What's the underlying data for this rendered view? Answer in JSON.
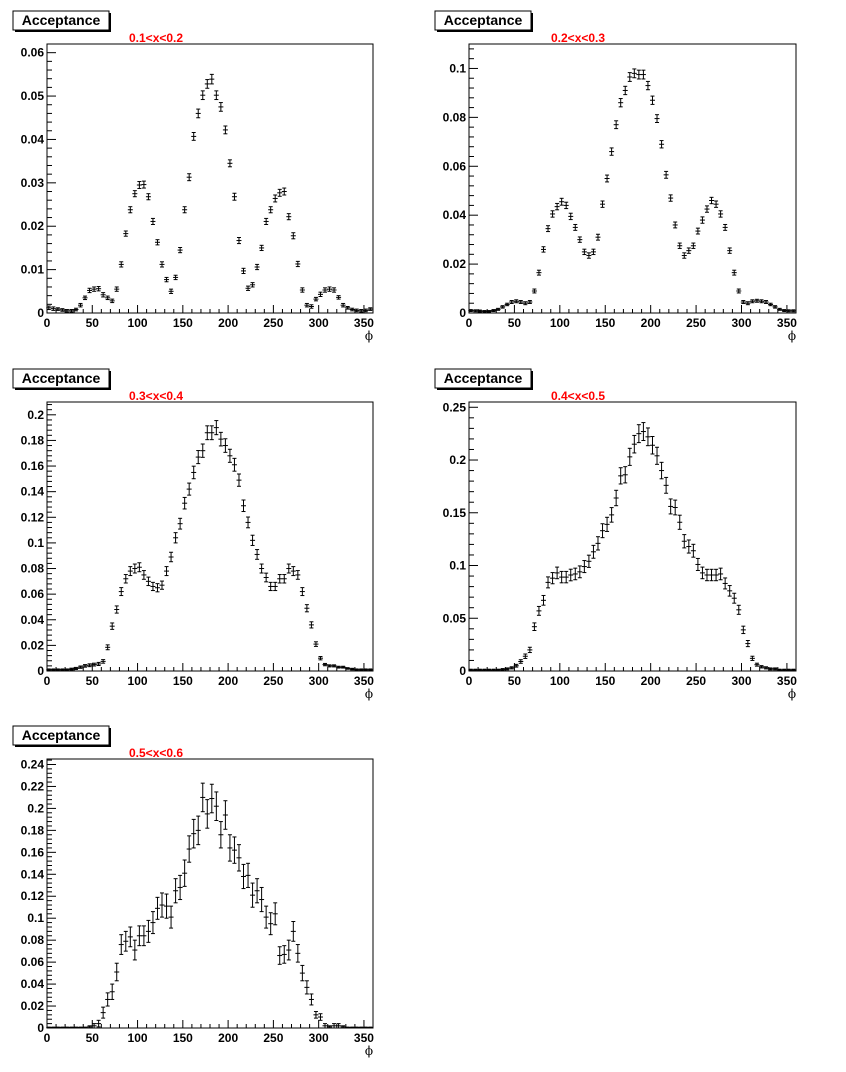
{
  "chart_data": [
    {
      "type": "scatter",
      "title": "Acceptance",
      "subtitle": "0.1<x<0.2",
      "xlabel": "ϕ",
      "ylabel": "",
      "xlim": [
        0,
        360
      ],
      "ylim": [
        0,
        0.062
      ],
      "xticks": [
        0,
        50,
        100,
        150,
        200,
        250,
        300,
        350
      ],
      "yticks": [
        0,
        0.01,
        0.02,
        0.03,
        0.04,
        0.05,
        0.06
      ],
      "ytick_labels": [
        "0",
        "0.01",
        "0.02",
        "0.03",
        "0.04",
        "0.05",
        "0.06"
      ],
      "grid": false,
      "legend": "none",
      "x": [
        2,
        7,
        12,
        17,
        22,
        27,
        32,
        37,
        42,
        47,
        52,
        57,
        62,
        67,
        72,
        77,
        82,
        87,
        92,
        97,
        102,
        107,
        112,
        117,
        122,
        127,
        132,
        137,
        142,
        147,
        152,
        157,
        162,
        167,
        172,
        177,
        182,
        187,
        192,
        197,
        202,
        207,
        212,
        217,
        222,
        227,
        232,
        237,
        242,
        247,
        252,
        257,
        262,
        267,
        272,
        277,
        282,
        287,
        292,
        297,
        302,
        307,
        312,
        317,
        322,
        327,
        332,
        337,
        342,
        347,
        352,
        357
      ],
      "y": [
        0.0012,
        0.001,
        0.0009,
        0.0007,
        0.0005,
        0.0005,
        0.0008,
        0.0018,
        0.0035,
        0.0052,
        0.0055,
        0.0056,
        0.0042,
        0.0035,
        0.0028,
        0.0055,
        0.0112,
        0.0183,
        0.0238,
        0.0275,
        0.0295,
        0.0296,
        0.0268,
        0.0211,
        0.0163,
        0.0112,
        0.0077,
        0.005,
        0.0082,
        0.0145,
        0.0238,
        0.0313,
        0.0407,
        0.046,
        0.0502,
        0.0528,
        0.0539,
        0.0502,
        0.0475,
        0.0422,
        0.0345,
        0.0268,
        0.0167,
        0.0097,
        0.0057,
        0.0065,
        0.0106,
        0.015,
        0.0211,
        0.0238,
        0.0264,
        0.0277,
        0.028,
        0.0222,
        0.0178,
        0.0113,
        0.0053,
        0.0018,
        0.0015,
        0.0032,
        0.0043,
        0.0053,
        0.0055,
        0.0053,
        0.0036,
        0.0018,
        0.0012,
        0.0008,
        0.0006,
        0.0005,
        0.0006,
        0.0009
      ],
      "yerr": [
        0.0004,
        0.0004,
        0.0003,
        0.0003,
        0.0003,
        0.0003,
        0.0003,
        0.0004,
        0.0004,
        0.0005,
        0.0005,
        0.0005,
        0.0005,
        0.0004,
        0.0004,
        0.0005,
        0.0006,
        0.0006,
        0.0007,
        0.0007,
        0.0008,
        0.0008,
        0.0007,
        0.0007,
        0.0006,
        0.0006,
        0.0005,
        0.0005,
        0.0005,
        0.0006,
        0.0007,
        0.0008,
        0.0009,
        0.001,
        0.001,
        0.001,
        0.0011,
        0.001,
        0.001,
        0.0009,
        0.0008,
        0.0008,
        0.0007,
        0.0006,
        0.0005,
        0.0005,
        0.0006,
        0.0006,
        0.0007,
        0.0007,
        0.0008,
        0.0008,
        0.0008,
        0.0007,
        0.0007,
        0.0006,
        0.0005,
        0.0004,
        0.0004,
        0.0004,
        0.0005,
        0.0005,
        0.0005,
        0.0005,
        0.0004,
        0.0004,
        0.0003,
        0.0003,
        0.0003,
        0.0003,
        0.0003,
        0.0003
      ]
    },
    {
      "type": "scatter",
      "title": "Acceptance",
      "subtitle": "0.2<x<0.3",
      "xlabel": "ϕ",
      "ylabel": "",
      "xlim": [
        0,
        360
      ],
      "ylim": [
        0,
        0.11
      ],
      "xticks": [
        0,
        50,
        100,
        150,
        200,
        250,
        300,
        350
      ],
      "yticks": [
        0,
        0.02,
        0.04,
        0.06,
        0.08,
        0.1
      ],
      "ytick_labels": [
        "0",
        "0.02",
        "0.04",
        "0.06",
        "0.08",
        "0.1"
      ],
      "grid": false,
      "legend": "none",
      "x": [
        2,
        7,
        12,
        17,
        22,
        27,
        32,
        37,
        42,
        47,
        52,
        57,
        62,
        67,
        72,
        77,
        82,
        87,
        92,
        97,
        102,
        107,
        112,
        117,
        122,
        127,
        132,
        137,
        142,
        147,
        152,
        157,
        162,
        167,
        172,
        177,
        182,
        187,
        192,
        197,
        202,
        207,
        212,
        217,
        222,
        227,
        232,
        237,
        242,
        247,
        252,
        257,
        262,
        267,
        272,
        277,
        282,
        287,
        292,
        297,
        302,
        307,
        312,
        317,
        322,
        327,
        332,
        337,
        342,
        347,
        352,
        357
      ],
      "y": [
        0.001,
        0.0009,
        0.0008,
        0.0007,
        0.0007,
        0.001,
        0.0015,
        0.0025,
        0.0035,
        0.0045,
        0.0048,
        0.0045,
        0.004,
        0.0045,
        0.009,
        0.0165,
        0.026,
        0.0345,
        0.0405,
        0.0435,
        0.0455,
        0.044,
        0.0395,
        0.035,
        0.03,
        0.025,
        0.0235,
        0.025,
        0.031,
        0.0445,
        0.055,
        0.066,
        0.077,
        0.086,
        0.091,
        0.0965,
        0.098,
        0.0975,
        0.0975,
        0.093,
        0.087,
        0.0795,
        0.069,
        0.0565,
        0.047,
        0.036,
        0.0275,
        0.0235,
        0.0255,
        0.0275,
        0.0335,
        0.038,
        0.0425,
        0.046,
        0.0445,
        0.0405,
        0.035,
        0.0255,
        0.0165,
        0.009,
        0.0045,
        0.004,
        0.0048,
        0.005,
        0.0048,
        0.0045,
        0.0035,
        0.0025,
        0.0015,
        0.001,
        0.0009,
        0.0009
      ],
      "yerr": [
        0.0004,
        0.0004,
        0.0004,
        0.0003,
        0.0003,
        0.0004,
        0.0004,
        0.0005,
        0.0005,
        0.0006,
        0.0006,
        0.0006,
        0.0006,
        0.0006,
        0.0008,
        0.001,
        0.0011,
        0.0012,
        0.0013,
        0.0013,
        0.0014,
        0.0013,
        0.0013,
        0.0012,
        0.0011,
        0.0011,
        0.0011,
        0.0011,
        0.0012,
        0.0013,
        0.0014,
        0.0015,
        0.0016,
        0.0017,
        0.0017,
        0.0018,
        0.0018,
        0.0018,
        0.0018,
        0.0017,
        0.0017,
        0.0016,
        0.0015,
        0.0014,
        0.0013,
        0.0012,
        0.0011,
        0.0011,
        0.0011,
        0.0011,
        0.0012,
        0.0013,
        0.0013,
        0.0013,
        0.0013,
        0.0013,
        0.0012,
        0.0011,
        0.001,
        0.0008,
        0.0006,
        0.0006,
        0.0006,
        0.0006,
        0.0006,
        0.0006,
        0.0005,
        0.0005,
        0.0004,
        0.0004,
        0.0004,
        0.0004
      ]
    },
    {
      "type": "scatter",
      "title": "Acceptance",
      "subtitle": "0.3<x<0.4",
      "xlabel": "ϕ",
      "ylabel": "",
      "xlim": [
        0,
        360
      ],
      "ylim": [
        0,
        0.21
      ],
      "xticks": [
        0,
        50,
        100,
        150,
        200,
        250,
        300,
        350
      ],
      "yticks": [
        0,
        0.02,
        0.04,
        0.06,
        0.08,
        0.1,
        0.12,
        0.14,
        0.16,
        0.18,
        0.2
      ],
      "ytick_labels": [
        "0",
        "0.02",
        "0.04",
        "0.06",
        "0.08",
        "0.1",
        "0.12",
        "0.14",
        "0.16",
        "0.18",
        "0.2"
      ],
      "grid": false,
      "legend": "none",
      "x": [
        2,
        7,
        12,
        17,
        22,
        27,
        32,
        37,
        42,
        47,
        52,
        57,
        62,
        67,
        72,
        77,
        82,
        87,
        92,
        97,
        102,
        107,
        112,
        117,
        122,
        127,
        132,
        137,
        142,
        147,
        152,
        157,
        162,
        167,
        172,
        177,
        182,
        187,
        192,
        197,
        202,
        207,
        212,
        217,
        222,
        227,
        232,
        237,
        242,
        247,
        252,
        257,
        262,
        267,
        272,
        277,
        282,
        287,
        292,
        297,
        302,
        307,
        312,
        317,
        322,
        327,
        332,
        337,
        342,
        347,
        352,
        357
      ],
      "y": [
        0.001,
        0.001,
        0.001,
        0.001,
        0.001,
        0.0015,
        0.002,
        0.003,
        0.004,
        0.0045,
        0.005,
        0.0055,
        0.0075,
        0.0185,
        0.035,
        0.048,
        0.062,
        0.072,
        0.078,
        0.08,
        0.081,
        0.075,
        0.07,
        0.066,
        0.065,
        0.067,
        0.078,
        0.089,
        0.104,
        0.115,
        0.131,
        0.142,
        0.155,
        0.167,
        0.172,
        0.186,
        0.186,
        0.19,
        0.181,
        0.176,
        0.168,
        0.161,
        0.149,
        0.129,
        0.116,
        0.102,
        0.091,
        0.08,
        0.073,
        0.066,
        0.066,
        0.072,
        0.072,
        0.08,
        0.078,
        0.075,
        0.062,
        0.049,
        0.036,
        0.021,
        0.01,
        0.005,
        0.004,
        0.004,
        0.003,
        0.003,
        0.002,
        0.0015,
        0.001,
        0.001,
        0.001,
        0.001
      ],
      "yerr": [
        0.0006,
        0.0006,
        0.0006,
        0.0006,
        0.0006,
        0.0007,
        0.0008,
        0.0009,
        0.001,
        0.0011,
        0.0011,
        0.0012,
        0.0014,
        0.0019,
        0.0025,
        0.0028,
        0.0031,
        0.0033,
        0.0035,
        0.0035,
        0.0035,
        0.0034,
        0.0033,
        0.0032,
        0.0032,
        0.0032,
        0.0035,
        0.0037,
        0.004,
        0.0042,
        0.0045,
        0.0047,
        0.0049,
        0.0051,
        0.0052,
        0.0054,
        0.0054,
        0.0055,
        0.0053,
        0.0053,
        0.0051,
        0.005,
        0.0048,
        0.0045,
        0.0042,
        0.004,
        0.0038,
        0.0035,
        0.0034,
        0.0032,
        0.0032,
        0.0033,
        0.0033,
        0.0035,
        0.0035,
        0.0034,
        0.0031,
        0.0028,
        0.0024,
        0.0018,
        0.0013,
        0.0009,
        0.0008,
        0.0008,
        0.0007,
        0.0007,
        0.0006,
        0.0006,
        0.0006,
        0.0006,
        0.0006,
        0.0006
      ]
    },
    {
      "type": "scatter",
      "title": "Acceptance",
      "subtitle": "0.4<x<0.5",
      "xlabel": "ϕ",
      "ylabel": "",
      "xlim": [
        0,
        360
      ],
      "ylim": [
        0,
        0.255
      ],
      "xticks": [
        0,
        50,
        100,
        150,
        200,
        250,
        300,
        350
      ],
      "yticks": [
        0,
        0.05,
        0.1,
        0.15,
        0.2,
        0.25
      ],
      "ytick_labels": [
        "0",
        "0.05",
        "0.1",
        "0.15",
        "0.2",
        "0.25"
      ],
      "grid": false,
      "legend": "none",
      "x": [
        2,
        7,
        12,
        17,
        22,
        27,
        32,
        37,
        42,
        47,
        52,
        57,
        62,
        67,
        72,
        77,
        82,
        87,
        92,
        97,
        102,
        107,
        112,
        117,
        122,
        127,
        132,
        137,
        142,
        147,
        152,
        157,
        162,
        167,
        172,
        177,
        182,
        187,
        192,
        197,
        202,
        207,
        212,
        217,
        222,
        227,
        232,
        237,
        242,
        247,
        252,
        257,
        262,
        267,
        272,
        277,
        282,
        287,
        292,
        297,
        302,
        307,
        312,
        317,
        322,
        327,
        332,
        337,
        342,
        347,
        352,
        357
      ],
      "y": [
        0.001,
        0.001,
        0.001,
        0.001,
        0.001,
        0.001,
        0.001,
        0.0015,
        0.002,
        0.003,
        0.005,
        0.009,
        0.014,
        0.02,
        0.042,
        0.057,
        0.067,
        0.084,
        0.088,
        0.093,
        0.089,
        0.089,
        0.091,
        0.092,
        0.094,
        0.099,
        0.104,
        0.113,
        0.121,
        0.133,
        0.139,
        0.148,
        0.164,
        0.185,
        0.186,
        0.203,
        0.215,
        0.225,
        0.227,
        0.222,
        0.214,
        0.204,
        0.19,
        0.176,
        0.156,
        0.155,
        0.141,
        0.123,
        0.118,
        0.114,
        0.101,
        0.093,
        0.091,
        0.091,
        0.091,
        0.092,
        0.083,
        0.076,
        0.069,
        0.058,
        0.039,
        0.026,
        0.012,
        0.006,
        0.004,
        0.003,
        0.002,
        0.002,
        0.001,
        0.001,
        0.001,
        0.001
      ],
      "yerr": [
        0.0007,
        0.0007,
        0.0007,
        0.0007,
        0.0007,
        0.0007,
        0.0007,
        0.0008,
        0.0009,
        0.001,
        0.0013,
        0.0017,
        0.0021,
        0.0025,
        0.0036,
        0.0042,
        0.0046,
        0.0052,
        0.0053,
        0.0055,
        0.0054,
        0.0054,
        0.0055,
        0.0055,
        0.0056,
        0.0057,
        0.0058,
        0.0061,
        0.0063,
        0.0066,
        0.0067,
        0.0069,
        0.0073,
        0.0077,
        0.0077,
        0.0081,
        0.0083,
        0.0085,
        0.0085,
        0.0084,
        0.0083,
        0.0081,
        0.0078,
        0.0075,
        0.0071,
        0.007,
        0.0067,
        0.0063,
        0.0062,
        0.0061,
        0.0057,
        0.0055,
        0.0054,
        0.0054,
        0.0054,
        0.0055,
        0.0052,
        0.005,
        0.0047,
        0.0043,
        0.0035,
        0.0029,
        0.002,
        0.0014,
        0.0011,
        0.001,
        0.0009,
        0.0009,
        0.0007,
        0.0007,
        0.0007,
        0.0007
      ]
    },
    {
      "type": "scatter",
      "title": "Acceptance",
      "subtitle": "0.5<x<0.6",
      "xlabel": "ϕ",
      "ylabel": "",
      "xlim": [
        0,
        360
      ],
      "ylim": [
        0,
        0.245
      ],
      "xticks": [
        0,
        50,
        100,
        150,
        200,
        250,
        300,
        350
      ],
      "yticks": [
        0,
        0.02,
        0.04,
        0.06,
        0.08,
        0.1,
        0.12,
        0.14,
        0.16,
        0.18,
        0.2,
        0.22,
        0.24
      ],
      "ytick_labels": [
        "0",
        "0.02",
        "0.04",
        "0.06",
        "0.08",
        "0.1",
        "0.12",
        "0.14",
        "0.16",
        "0.18",
        "0.2",
        "0.22",
        "0.24"
      ],
      "grid": false,
      "legend": "none",
      "x": [
        2,
        7,
        12,
        17,
        22,
        27,
        32,
        37,
        42,
        47,
        52,
        57,
        62,
        67,
        72,
        77,
        82,
        87,
        92,
        97,
        102,
        107,
        112,
        117,
        122,
        127,
        132,
        137,
        142,
        147,
        152,
        157,
        162,
        167,
        172,
        177,
        182,
        187,
        192,
        197,
        202,
        207,
        212,
        217,
        222,
        227,
        232,
        237,
        242,
        247,
        252,
        257,
        262,
        267,
        272,
        277,
        282,
        287,
        292,
        297,
        302,
        307,
        312,
        317,
        322,
        327,
        332,
        337,
        342,
        347,
        352,
        357
      ],
      "y": [
        0.0005,
        0.0005,
        0.0005,
        0.0005,
        0.0005,
        0.0005,
        0.0005,
        0.0005,
        0.0005,
        0.001,
        0.002,
        0.004,
        0.014,
        0.026,
        0.033,
        0.051,
        0.076,
        0.079,
        0.083,
        0.071,
        0.084,
        0.084,
        0.088,
        0.096,
        0.109,
        0.112,
        0.111,
        0.101,
        0.125,
        0.128,
        0.141,
        0.163,
        0.177,
        0.18,
        0.21,
        0.195,
        0.209,
        0.202,
        0.176,
        0.194,
        0.164,
        0.162,
        0.155,
        0.138,
        0.139,
        0.121,
        0.125,
        0.117,
        0.101,
        0.095,
        0.104,
        0.066,
        0.067,
        0.071,
        0.088,
        0.068,
        0.05,
        0.037,
        0.026,
        0.012,
        0.01,
        0.002,
        0.001,
        0.002,
        0.002,
        0.001,
        0.0005,
        0.0005,
        0.0005,
        0.0005,
        0.0005,
        0.0005
      ],
      "yerr": [
        0.0003,
        0.0003,
        0.0003,
        0.0003,
        0.0003,
        0.0003,
        0.0003,
        0.0003,
        0.0003,
        0.001,
        0.002,
        0.003,
        0.005,
        0.006,
        0.007,
        0.008,
        0.009,
        0.009,
        0.009,
        0.009,
        0.009,
        0.009,
        0.01,
        0.01,
        0.01,
        0.011,
        0.011,
        0.01,
        0.011,
        0.011,
        0.012,
        0.012,
        0.013,
        0.013,
        0.013,
        0.013,
        0.013,
        0.013,
        0.012,
        0.013,
        0.012,
        0.012,
        0.012,
        0.011,
        0.011,
        0.011,
        0.011,
        0.011,
        0.01,
        0.01,
        0.01,
        0.008,
        0.008,
        0.009,
        0.009,
        0.008,
        0.007,
        0.006,
        0.005,
        0.003,
        0.003,
        0.002,
        0.001,
        0.002,
        0.002,
        0.001,
        0.0003,
        0.0003,
        0.0003,
        0.0003,
        0.0003,
        0.0003
      ]
    }
  ]
}
